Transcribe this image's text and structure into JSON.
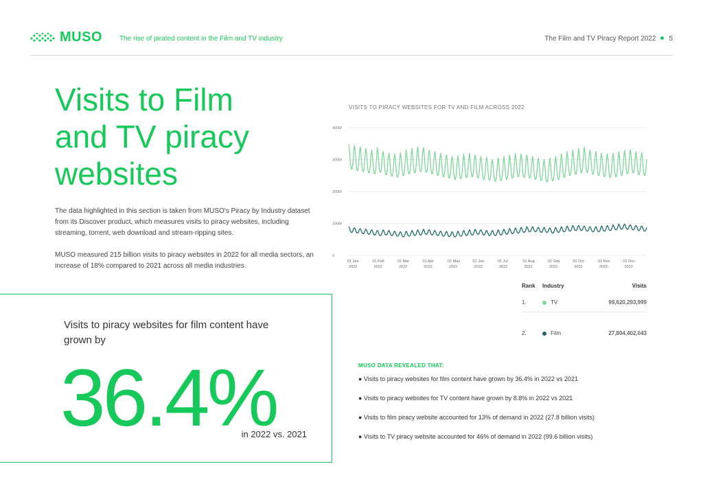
{
  "header": {
    "brand": "MUSO",
    "subtitle": "The rise of pirated content in the Film and TV industry",
    "report": "The Film and TV Piracy Report 2022",
    "page_number": "5",
    "brand_color": "#17c95a"
  },
  "main": {
    "title_lines": [
      "Visits to Film",
      "and TV piracy",
      "websites"
    ],
    "paragraph1": "The data highlighted in this section is taken from MUSO's Piracy by Industry dataset from its Discover product, which measures visits to piracy websites, including streaming, torrent, web download and stream-ripping sites.",
    "paragraph2": "MUSO measured  215 billion visits to piracy websites in 2022 for all media sectors,  an increase of 18% compared to 2021 across all media industries."
  },
  "callout": {
    "text": "Visits to piracy websites for film content have grown by",
    "number": "36.4%",
    "footer": "in 2022 vs. 2021"
  },
  "chart_data": {
    "type": "line",
    "title": "VISITS TO PIRACY WEBSITES FOR TV AND FILM ACROSS 2022",
    "ylim": [
      0,
      400
    ],
    "y_ticks": [
      "0",
      "100M",
      "200M",
      "300M",
      "400M"
    ],
    "x_ticks": [
      [
        "01 Jan",
        "2022"
      ],
      [
        "01 Feb",
        "2022"
      ],
      [
        "01 Mar",
        "2022"
      ],
      [
        "01 Apr",
        "2022"
      ],
      [
        "01 May",
        "2022"
      ],
      [
        "01 Jun",
        "2022"
      ],
      [
        "01 Jul",
        "2022"
      ],
      [
        "01 Aug",
        "2022"
      ],
      [
        "01 Sep",
        "2022"
      ],
      [
        "01 Oct",
        "2022"
      ],
      [
        "01 Nov",
        "2022"
      ],
      [
        "01 Dec",
        "2022"
      ]
    ],
    "series": [
      {
        "color": "#7fd69b",
        "weekly_high": [
          348,
          345,
          340,
          335,
          330,
          338,
          325,
          320,
          318,
          322,
          330,
          335,
          340,
          338,
          330,
          325,
          320,
          315,
          310,
          312,
          318,
          320,
          315,
          310,
          308,
          300,
          305,
          310,
          315,
          320,
          318,
          315,
          310,
          305,
          300,
          305,
          310,
          318,
          325,
          330,
          335,
          340,
          330,
          325,
          320,
          318,
          320,
          325,
          330,
          332,
          325,
          322
        ],
        "weekly_low": [
          270,
          265,
          262,
          258,
          255,
          260,
          252,
          248,
          245,
          250,
          255,
          258,
          262,
          260,
          255,
          250,
          246,
          242,
          238,
          240,
          244,
          246,
          242,
          238,
          236,
          232,
          234,
          238,
          242,
          246,
          244,
          242,
          238,
          234,
          230,
          233,
          238,
          244,
          250,
          254,
          258,
          260,
          254,
          250,
          246,
          244,
          246,
          250,
          255,
          258,
          252,
          250
        ]
      },
      {
        "color": "#1f6b6b",
        "weekly_high": [
          90,
          86,
          84,
          82,
          80,
          78,
          80,
          78,
          76,
          74,
          76,
          78,
          80,
          82,
          80,
          78,
          76,
          75,
          74,
          76,
          78,
          80,
          82,
          80,
          78,
          78,
          80,
          82,
          84,
          86,
          88,
          90,
          90,
          88,
          88,
          86,
          88,
          90,
          92,
          94,
          94,
          92,
          90,
          90,
          92,
          94,
          96,
          98,
          98,
          96,
          94,
          92
        ],
        "weekly_low": [
          72,
          70,
          68,
          66,
          64,
          62,
          64,
          62,
          60,
          58,
          60,
          62,
          64,
          66,
          64,
          62,
          60,
          59,
          58,
          60,
          62,
          64,
          66,
          64,
          62,
          62,
          64,
          66,
          68,
          70,
          72,
          74,
          74,
          72,
          72,
          70,
          72,
          74,
          76,
          78,
          78,
          76,
          74,
          74,
          76,
          78,
          80,
          82,
          82,
          80,
          78,
          76
        ]
      }
    ]
  },
  "table": {
    "headers": [
      "Rank",
      "Industry",
      "Visits"
    ],
    "rows": [
      {
        "rank": "1.",
        "industry": "TV",
        "visits": "99,620,293,999",
        "color": "#7fd69b"
      },
      {
        "rank": "2.",
        "industry": "Film",
        "visits": "27,804,402,043",
        "color": "#1f6b6b"
      }
    ]
  },
  "findings": {
    "title": "MUSO DATA REVEALED THAT:",
    "items": [
      "● Visits to piracy websites for film content have grown by 36.4% in 2022 vs 2021",
      "● Visits to piracy websites for TV content have grown by 8.8% in 2022 vs 2021",
      "● Visits to film piracy website accounted for 13% of demand in 2022 (27.8 billion visits)",
      "● Visits to TV piracy website accounted for 46% of demand in 2022 (99.6 billion visits)"
    ]
  }
}
